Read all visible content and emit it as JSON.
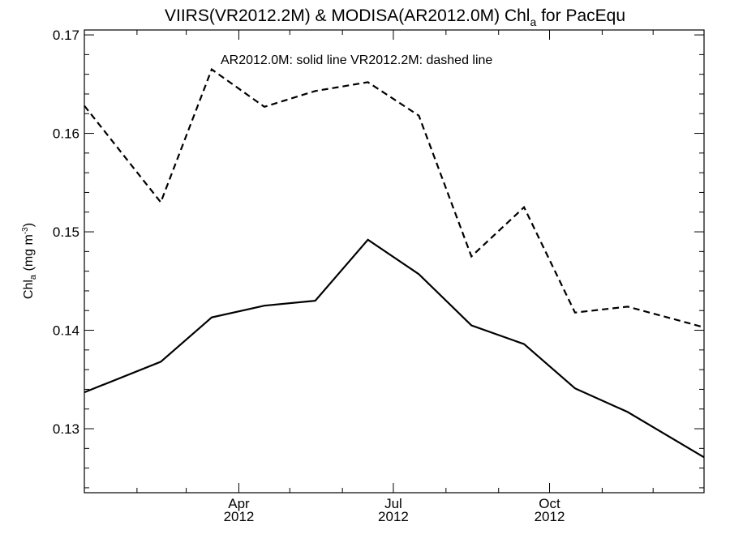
{
  "chart_data": {
    "type": "line",
    "title": {
      "main": "VIIRS(VR2012.2M) & MODISA(AR2012.0M)  Chl",
      "subscript": "a",
      "suffix": " for PacEqu"
    },
    "ylabel": {
      "main": "Chl",
      "subscript": "a",
      "unit": " (mg m",
      "superscript": "-3",
      "close": ")"
    },
    "annotation": "AR2012.0M: solid line   VR2012.2M: dashed line",
    "x_ticks": [
      {
        "month": "Apr",
        "year": "2012",
        "x": "2012-04-01"
      },
      {
        "month": "Jul",
        "year": "2012",
        "x": "2012-07-01"
      },
      {
        "month": "Oct",
        "year": "2012",
        "x": "2012-10-01"
      }
    ],
    "xlim": [
      "2012-01-01",
      "2012-12-31"
    ],
    "y_ticks": [
      "0.13",
      "0.14",
      "0.15",
      "0.16",
      "0.17"
    ],
    "ylim": [
      0.1235,
      0.1705
    ],
    "grid": false,
    "series": [
      {
        "name": "AR2012.0M",
        "style": "solid",
        "color": "#000000",
        "points": [
          {
            "x": "2012-01-01",
            "y": 0.1337
          },
          {
            "x": "2012-02-15",
            "y": 0.1368
          },
          {
            "x": "2012-03-16",
            "y": 0.1413
          },
          {
            "x": "2012-04-16",
            "y": 0.1425
          },
          {
            "x": "2012-05-16",
            "y": 0.143
          },
          {
            "x": "2012-06-16",
            "y": 0.1492
          },
          {
            "x": "2012-07-16",
            "y": 0.1457
          },
          {
            "x": "2012-08-16",
            "y": 0.1405
          },
          {
            "x": "2012-09-16",
            "y": 0.1386
          },
          {
            "x": "2012-10-16",
            "y": 0.1341
          },
          {
            "x": "2012-11-16",
            "y": 0.1317
          },
          {
            "x": "2012-12-31",
            "y": 0.1271
          }
        ]
      },
      {
        "name": "VR2012.2M",
        "style": "dashed",
        "color": "#000000",
        "points": [
          {
            "x": "2012-01-01",
            "y": 0.1628
          },
          {
            "x": "2012-02-15",
            "y": 0.153
          },
          {
            "x": "2012-03-16",
            "y": 0.1665
          },
          {
            "x": "2012-04-16",
            "y": 0.1627
          },
          {
            "x": "2012-05-16",
            "y": 0.1643
          },
          {
            "x": "2012-06-16",
            "y": 0.1652
          },
          {
            "x": "2012-07-16",
            "y": 0.1618
          },
          {
            "x": "2012-08-16",
            "y": 0.1475
          },
          {
            "x": "2012-09-16",
            "y": 0.1525
          },
          {
            "x": "2012-10-16",
            "y": 0.1418
          },
          {
            "x": "2012-11-16",
            "y": 0.1424
          },
          {
            "x": "2012-12-31",
            "y": 0.1403
          }
        ]
      }
    ]
  }
}
